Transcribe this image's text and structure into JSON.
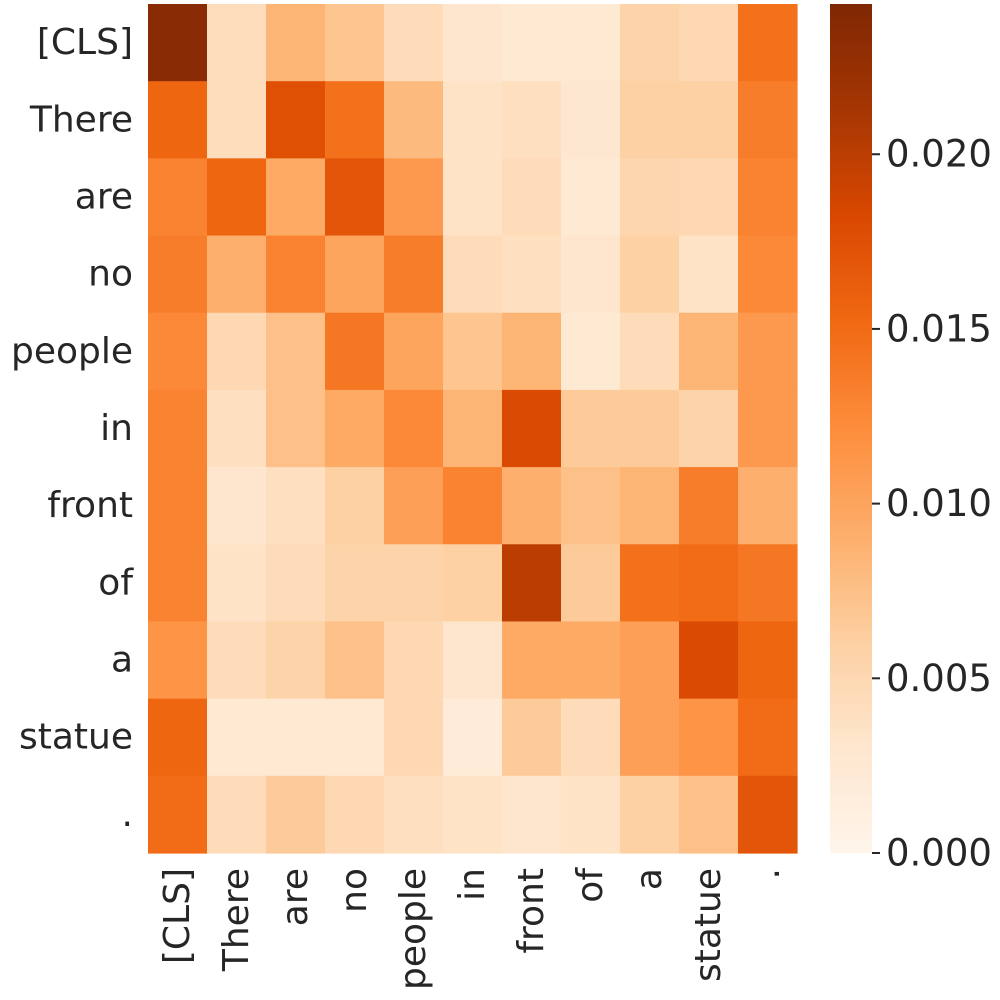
{
  "chart_data": {
    "type": "heatmap",
    "title": "",
    "xlabel": "",
    "ylabel": "",
    "x_labels": [
      "[CLS]",
      "There",
      "are",
      "no",
      "people",
      "in",
      "front",
      "of",
      "a",
      "statue",
      "."
    ],
    "y_labels": [
      "[CLS]",
      "There",
      "are",
      "no",
      "people",
      "in",
      "front",
      "of",
      "a",
      "statue",
      "."
    ],
    "values": [
      [
        0.0235,
        0.0043,
        0.0085,
        0.007,
        0.0045,
        0.003,
        0.0025,
        0.0025,
        0.0055,
        0.005,
        0.0145
      ],
      [
        0.0155,
        0.0043,
        0.0175,
        0.0145,
        0.008,
        0.0035,
        0.004,
        0.0028,
        0.006,
        0.006,
        0.0135
      ],
      [
        0.013,
        0.0155,
        0.0095,
        0.017,
        0.011,
        0.0035,
        0.0045,
        0.0025,
        0.0052,
        0.005,
        0.013
      ],
      [
        0.0135,
        0.009,
        0.013,
        0.01,
        0.0135,
        0.0045,
        0.004,
        0.003,
        0.006,
        0.0035,
        0.0125
      ],
      [
        0.0125,
        0.005,
        0.0075,
        0.014,
        0.01,
        0.007,
        0.0085,
        0.0025,
        0.0045,
        0.0085,
        0.011
      ],
      [
        0.013,
        0.004,
        0.0075,
        0.0095,
        0.0125,
        0.0085,
        0.018,
        0.0065,
        0.0065,
        0.0055,
        0.011
      ],
      [
        0.013,
        0.003,
        0.004,
        0.006,
        0.0105,
        0.013,
        0.009,
        0.0075,
        0.0085,
        0.0135,
        0.009
      ],
      [
        0.013,
        0.0035,
        0.0045,
        0.0055,
        0.0055,
        0.006,
        0.02,
        0.0065,
        0.0145,
        0.015,
        0.014
      ],
      [
        0.0115,
        0.0045,
        0.0055,
        0.0075,
        0.005,
        0.003,
        0.0095,
        0.0095,
        0.0105,
        0.018,
        0.0155
      ],
      [
        0.0155,
        0.0025,
        0.0025,
        0.0025,
        0.005,
        0.002,
        0.0065,
        0.0045,
        0.0105,
        0.0115,
        0.015
      ],
      [
        0.015,
        0.0045,
        0.0065,
        0.005,
        0.004,
        0.0035,
        0.003,
        0.0035,
        0.006,
        0.0075,
        0.017
      ]
    ],
    "colorbar": {
      "min": 0.0,
      "max": 0.0243,
      "ticks": [
        "0.000",
        "0.005",
        "0.010",
        "0.015",
        "0.020"
      ],
      "tick_values": [
        0.0,
        0.005,
        0.01,
        0.015,
        0.02
      ],
      "colormap": "Oranges",
      "colormap_stops": [
        "#fff5eb",
        "#fee6ce",
        "#fdd0a2",
        "#fdae6b",
        "#fd8d3c",
        "#f16913",
        "#d94801",
        "#a63603",
        "#7f2704"
      ]
    },
    "grid": false,
    "legend": "colorbar-right"
  }
}
